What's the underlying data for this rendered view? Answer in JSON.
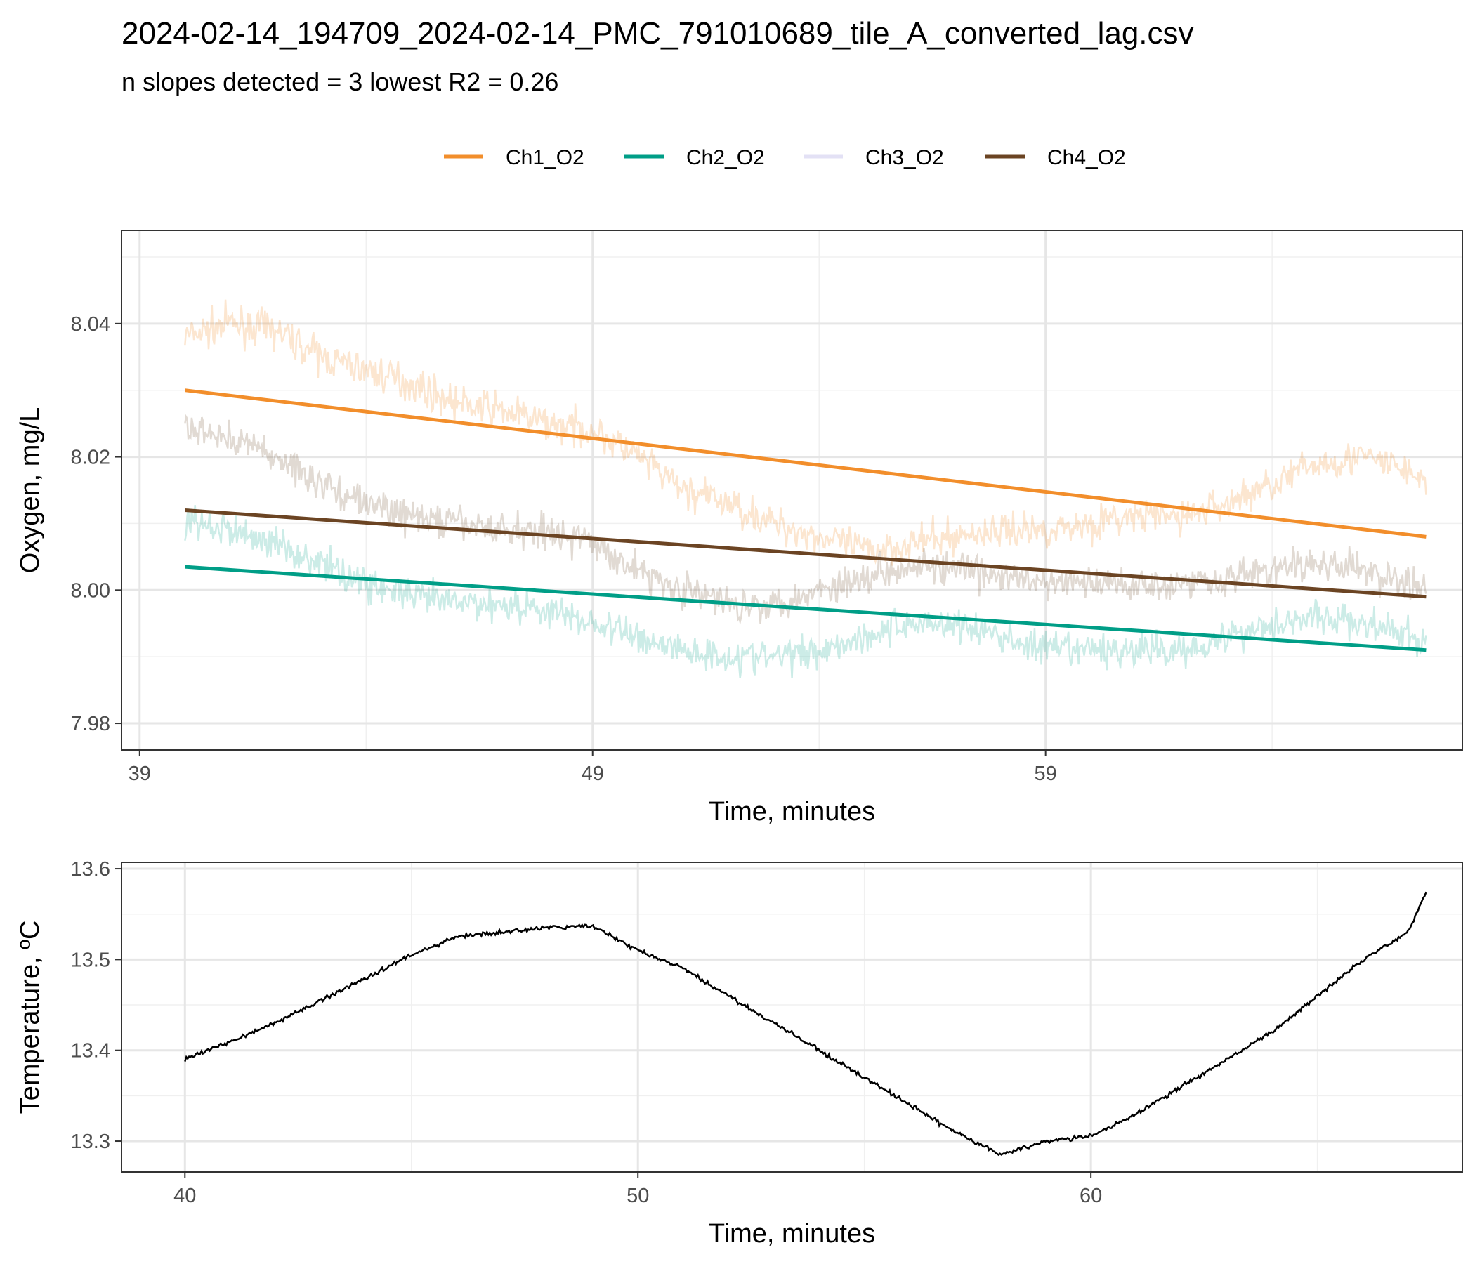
{
  "figure": {
    "title": "2024-02-14_194709_2024-02-14_PMC_791010689_tile_A_converted_lag.csv",
    "subtitle": "n slopes detected = 3  lowest R2 = 0.26"
  },
  "chart_data": [
    {
      "type": "line",
      "panel": "oxygen",
      "xlabel": "Time, minutes",
      "ylabel": "Oxygen, mg/L",
      "xlim": [
        38.6,
        68.2
      ],
      "ylim": [
        7.976,
        8.054
      ],
      "xticks": [
        39,
        49,
        59
      ],
      "yticks": [
        7.98,
        8.0,
        8.02,
        8.04
      ],
      "grid": true,
      "legend_position": "top",
      "series": [
        {
          "name": "Ch1_O2",
          "color": "#F28E2B",
          "fit": {
            "x": [
              40.0,
              67.4
            ],
            "y": [
              8.03,
              8.008
            ]
          },
          "raw": {
            "x": [
              40.0,
              41.0,
              42.0,
              43.0,
              44.0,
              45.0,
              46.0,
              47.0,
              48.0,
              49.0,
              50.0,
              51.0,
              52.0,
              53.0,
              54.0,
              55.0,
              56.0,
              57.0,
              58.0,
              59.0,
              60.0,
              61.0,
              62.0,
              63.0,
              64.0,
              65.0,
              66.0,
              67.0,
              67.4
            ],
            "y": [
              8.038,
              8.04,
              8.039,
              8.035,
              8.033,
              8.031,
              8.028,
              8.027,
              8.025,
              8.024,
              8.02,
              8.015,
              8.013,
              8.01,
              8.008,
              8.006,
              8.007,
              8.008,
              8.009,
              8.009,
              8.01,
              8.011,
              8.011,
              8.013,
              8.016,
              8.019,
              8.02,
              8.018,
              8.016
            ]
          }
        },
        {
          "name": "Ch2_O2",
          "color": "#009E87",
          "fit": {
            "x": [
              40.0,
              67.4
            ],
            "y": [
              8.0035,
              7.991
            ]
          },
          "raw": {
            "x": [
              40.0,
              41.0,
              42.0,
              43.0,
              44.0,
              45.0,
              46.0,
              47.0,
              48.0,
              49.0,
              50.0,
              51.0,
              52.0,
              53.0,
              54.0,
              55.0,
              56.0,
              57.0,
              58.0,
              59.0,
              60.0,
              61.0,
              62.0,
              63.0,
              64.0,
              65.0,
              66.0,
              67.0,
              67.4
            ],
            "y": [
              8.01,
              8.009,
              8.007,
              8.004,
              8.001,
              7.999,
              7.998,
              7.998,
              7.997,
              7.995,
              7.993,
              7.991,
              7.99,
              7.99,
              7.991,
              7.993,
              7.995,
              7.995,
              7.993,
              7.991,
              7.991,
              7.991,
              7.991,
              7.993,
              7.995,
              7.996,
              7.995,
              7.993,
              7.992
            ]
          }
        },
        {
          "name": "Ch3_O2",
          "color": "#E3E1F5",
          "fit": null,
          "raw": null
        },
        {
          "name": "Ch4_O2",
          "color": "#6B4423",
          "fit": {
            "x": [
              40.0,
              67.4
            ],
            "y": [
              8.012,
              7.999
            ]
          },
          "raw": {
            "x": [
              40.0,
              41.0,
              42.0,
              43.0,
              44.0,
              45.0,
              46.0,
              47.0,
              48.0,
              49.0,
              50.0,
              51.0,
              52.0,
              53.0,
              54.0,
              55.0,
              56.0,
              57.0,
              58.0,
              59.0,
              60.0,
              61.0,
              62.0,
              63.0,
              64.0,
              65.0,
              66.0,
              67.0,
              67.4
            ],
            "y": [
              8.024,
              8.023,
              8.02,
              8.016,
              8.013,
              8.011,
              8.01,
              8.009,
              8.009,
              8.007,
              8.003,
              8.0,
              7.998,
              7.998,
              8.0,
              8.002,
              8.004,
              8.003,
              8.002,
              8.001,
              8.001,
              8.001,
              8.001,
              8.002,
              8.003,
              8.004,
              8.003,
              8.001,
              8.0
            ]
          }
        }
      ]
    },
    {
      "type": "line",
      "panel": "temperature",
      "xlabel": "Time, minutes",
      "ylabel": "Temperature, ºC",
      "xlim": [
        38.6,
        68.2
      ],
      "ylim": [
        13.266,
        13.607
      ],
      "xticks": [
        40,
        50,
        60
      ],
      "yticks": [
        13.3,
        13.4,
        13.5,
        13.6
      ],
      "grid": true,
      "series": [
        {
          "color": "#000000",
          "x": [
            40.0,
            41.0,
            42.0,
            43.0,
            44.0,
            45.0,
            46.0,
            47.0,
            48.0,
            49.0,
            50.0,
            51.0,
            52.0,
            53.0,
            54.0,
            55.0,
            56.0,
            57.0,
            58.0,
            59.0,
            60.0,
            61.0,
            62.0,
            63.0,
            64.0,
            65.0,
            66.0,
            67.0,
            67.4
          ],
          "y": [
            13.39,
            13.41,
            13.43,
            13.455,
            13.48,
            13.505,
            13.525,
            13.53,
            13.535,
            13.537,
            13.51,
            13.49,
            13.46,
            13.43,
            13.4,
            13.37,
            13.34,
            13.31,
            13.285,
            13.3,
            13.305,
            13.33,
            13.36,
            13.39,
            13.42,
            13.46,
            13.5,
            13.53,
            13.575
          ]
        }
      ]
    }
  ]
}
